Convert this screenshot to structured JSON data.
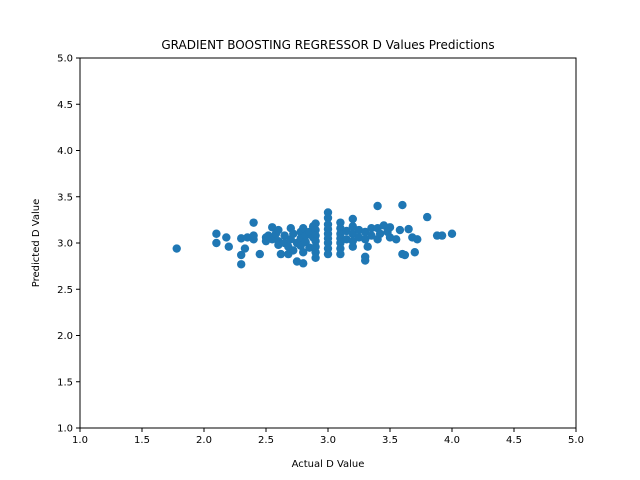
{
  "chart_data": {
    "type": "scatter",
    "title": "GRADIENT BOOSTING REGRESSOR D Values Predictions",
    "xlabel": "Actual D Value",
    "ylabel": "Predicted D Value",
    "xlim": [
      1.0,
      5.0
    ],
    "ylim": [
      1.0,
      5.0
    ],
    "xticks": [
      "1.0",
      "1.5",
      "2.0",
      "2.5",
      "3.0",
      "3.5",
      "4.0",
      "4.5",
      "5.0"
    ],
    "yticks": [
      "1.0",
      "1.5",
      "2.0",
      "2.5",
      "3.0",
      "3.5",
      "4.0",
      "4.5",
      "5.0"
    ],
    "grid": false,
    "legend": "none",
    "color": "#1f77b4",
    "series": [
      {
        "points": [
          [
            1.78,
            2.94
          ],
          [
            2.1,
            3.1
          ],
          [
            2.1,
            3.0
          ],
          [
            2.18,
            3.06
          ],
          [
            2.2,
            2.96
          ],
          [
            2.3,
            3.05
          ],
          [
            2.3,
            2.87
          ],
          [
            2.3,
            2.77
          ],
          [
            2.33,
            2.94
          ],
          [
            2.35,
            3.06
          ],
          [
            2.4,
            3.22
          ],
          [
            2.4,
            3.04
          ],
          [
            2.4,
            3.08
          ],
          [
            2.45,
            2.88
          ],
          [
            2.5,
            3.06
          ],
          [
            2.5,
            3.02
          ],
          [
            2.52,
            3.08
          ],
          [
            2.55,
            3.04
          ],
          [
            2.55,
            3.17
          ],
          [
            2.58,
            3.1
          ],
          [
            2.6,
            3.14
          ],
          [
            2.6,
            3.02
          ],
          [
            2.6,
            2.98
          ],
          [
            2.62,
            2.88
          ],
          [
            2.65,
            3.08
          ],
          [
            2.65,
            3.0
          ],
          [
            2.68,
            2.96
          ],
          [
            2.68,
            2.88
          ],
          [
            2.7,
            3.16
          ],
          [
            2.7,
            3.04
          ],
          [
            2.72,
            3.1
          ],
          [
            2.72,
            2.92
          ],
          [
            2.75,
            2.8
          ],
          [
            2.75,
            3.0
          ],
          [
            2.78,
            3.12
          ],
          [
            2.78,
            3.05
          ],
          [
            2.78,
            2.97
          ],
          [
            2.8,
            3.16
          ],
          [
            2.8,
            2.78
          ],
          [
            2.8,
            2.9
          ],
          [
            2.82,
            3.08
          ],
          [
            2.82,
            3.01
          ],
          [
            2.85,
            3.12
          ],
          [
            2.85,
            2.95
          ],
          [
            2.88,
            3.18
          ],
          [
            2.88,
            3.06
          ],
          [
            2.9,
            3.21
          ],
          [
            2.9,
            3.14
          ],
          [
            2.9,
            3.08
          ],
          [
            2.9,
            3.02
          ],
          [
            2.9,
            2.96
          ],
          [
            2.9,
            2.9
          ],
          [
            2.9,
            2.84
          ],
          [
            3.0,
            3.33
          ],
          [
            3.0,
            3.27
          ],
          [
            3.0,
            3.2
          ],
          [
            3.0,
            3.15
          ],
          [
            3.0,
            3.1
          ],
          [
            3.0,
            3.05
          ],
          [
            3.0,
            3.0
          ],
          [
            3.0,
            2.94
          ],
          [
            3.0,
            2.88
          ],
          [
            3.1,
            3.22
          ],
          [
            3.1,
            3.16
          ],
          [
            3.1,
            3.1
          ],
          [
            3.1,
            3.05
          ],
          [
            3.1,
            3.0
          ],
          [
            3.1,
            2.94
          ],
          [
            3.1,
            2.88
          ],
          [
            3.15,
            3.13
          ],
          [
            3.15,
            3.04
          ],
          [
            3.2,
            3.26
          ],
          [
            3.2,
            3.18
          ],
          [
            3.2,
            3.1
          ],
          [
            3.2,
            3.02
          ],
          [
            3.2,
            2.96
          ],
          [
            3.25,
            3.14
          ],
          [
            3.25,
            3.06
          ],
          [
            3.3,
            3.12
          ],
          [
            3.3,
            3.04
          ],
          [
            3.3,
            2.85
          ],
          [
            3.3,
            2.81
          ],
          [
            3.32,
            2.96
          ],
          [
            3.35,
            3.16
          ],
          [
            3.35,
            3.08
          ],
          [
            3.4,
            3.4
          ],
          [
            3.4,
            3.16
          ],
          [
            3.4,
            3.04
          ],
          [
            3.42,
            3.1
          ],
          [
            3.45,
            3.19
          ],
          [
            3.48,
            3.12
          ],
          [
            3.5,
            3.17
          ],
          [
            3.5,
            3.06
          ],
          [
            3.55,
            3.04
          ],
          [
            3.58,
            3.14
          ],
          [
            3.6,
            3.41
          ],
          [
            3.6,
            2.88
          ],
          [
            3.62,
            2.87
          ],
          [
            3.65,
            3.15
          ],
          [
            3.68,
            3.06
          ],
          [
            3.7,
            2.9
          ],
          [
            3.72,
            3.04
          ],
          [
            3.8,
            3.28
          ],
          [
            3.88,
            3.08
          ],
          [
            3.92,
            3.08
          ],
          [
            4.0,
            3.1
          ]
        ]
      }
    ]
  }
}
